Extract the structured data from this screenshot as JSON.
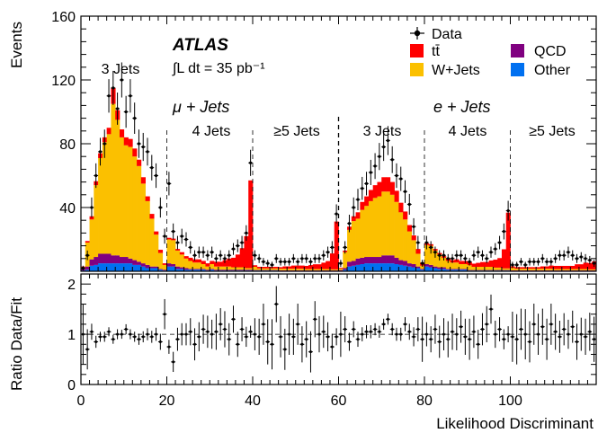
{
  "chart_data": {
    "type": "stacked-histogram-with-ratio",
    "upper": {
      "ylabel": "Events",
      "ylim": [
        0,
        160
      ],
      "yticks": [
        "40",
        "80",
        "120",
        "160"
      ],
      "experiment": "ATLAS",
      "lumi_text": "∫L dt = 35 pb⁻¹",
      "region_labels": [
        "μ + Jets",
        "e + Jets"
      ],
      "jet_bins": [
        "3 Jets",
        "4 Jets",
        "≥5 Jets",
        "3 Jets",
        "4 Jets",
        "≥5 Jets"
      ],
      "legend": [
        {
          "name": "Data",
          "marker": "point"
        },
        {
          "name": "tt̄",
          "color": "#ff0000"
        },
        {
          "name": "QCD",
          "color": "#800080"
        },
        {
          "name": "W+Jets",
          "color": "#fbc000"
        },
        {
          "name": "Other",
          "color": "#0070f0"
        }
      ],
      "legend_position": "top-right"
    },
    "lower": {
      "ylabel": "Ratio Data/Fit",
      "ylim": [
        0,
        2.2
      ],
      "yticks": [
        "0",
        "1",
        "2"
      ],
      "reference_line": 1
    },
    "x": {
      "label": "Likelihood Discriminant",
      "lim": [
        0,
        120
      ],
      "ticks": [
        "0",
        "20",
        "40",
        "60",
        "80",
        "100"
      ],
      "bin_width": 1,
      "segment_boundaries": [
        20,
        40,
        60,
        80,
        100
      ]
    },
    "series": [
      {
        "name": "Other",
        "color": "#0070f0",
        "values": [
          0.5,
          1,
          3.5,
          4,
          5,
          5,
          5,
          5,
          5,
          5,
          5,
          5,
          4,
          4,
          3,
          2,
          2,
          2,
          1,
          0.5,
          3,
          3,
          1.5,
          1.5,
          1,
          1,
          1,
          1,
          1,
          0.5,
          1,
          0.5,
          0.5,
          0.5,
          0.5,
          0.5,
          0.5,
          0.5,
          0.5,
          0.5,
          0.5,
          0.5,
          0.5,
          0.5,
          0.5,
          0.5,
          0.3,
          0.3,
          0.3,
          0.3,
          0.3,
          0.3,
          0.3,
          0.3,
          0.3,
          0.3,
          0.3,
          0.3,
          0.3,
          0.3,
          0.3,
          1,
          3,
          3.5,
          4,
          4.5,
          5,
          5,
          5,
          5,
          5,
          5,
          5,
          4.5,
          4,
          3.5,
          3,
          2.5,
          2,
          1,
          3,
          2.5,
          2,
          1.5,
          1.5,
          1,
          1,
          1,
          1,
          1,
          0.5,
          0.5,
          0.5,
          0.5,
          0.5,
          0.5,
          0.5,
          0.5,
          0.5,
          0.5,
          0.3,
          0.3,
          0.3,
          0.3,
          0.3,
          0.3,
          0.3,
          0.3,
          0.3,
          0.3,
          0.3,
          0.3,
          0.3,
          0.3,
          0.3,
          0.3,
          0.3,
          0.3,
          0.3,
          0.3
        ]
      },
      {
        "name": "QCD",
        "color": "#800080",
        "values": [
          1,
          2,
          4,
          5,
          6,
          6,
          6,
          5,
          5,
          4,
          4,
          3,
          3,
          2,
          2,
          2,
          1,
          1,
          0.5,
          0.5,
          2,
          1.5,
          1.5,
          1,
          1,
          0.5,
          0.5,
          0.5,
          0.5,
          0.5,
          0.5,
          0.5,
          0.5,
          0.5,
          0.5,
          0.5,
          0.5,
          0.5,
          0.5,
          0.5,
          0.3,
          0.3,
          0.3,
          0.3,
          0.3,
          0.3,
          0.3,
          0.3,
          0.3,
          0.3,
          0.3,
          0.3,
          0.3,
          0.3,
          0.3,
          0.3,
          0.3,
          0.3,
          0.3,
          0.3,
          0.5,
          1,
          3,
          3,
          4,
          4,
          4,
          4,
          4,
          4,
          5,
          5,
          5,
          4,
          3,
          3,
          2,
          2,
          1,
          0.5,
          1.5,
          1.5,
          1,
          1,
          1,
          0.5,
          0.5,
          0.5,
          0.5,
          0.5,
          0.3,
          0.3,
          0.3,
          0.3,
          0.3,
          0.3,
          0.3,
          0.3,
          0.3,
          0.3,
          0.3,
          0.3,
          0.3,
          0.3,
          0.3,
          0.3,
          0.3,
          0.3,
          0.3,
          0.3,
          0.3,
          0.3,
          0.3,
          0.3,
          0.3,
          0.3,
          0.3,
          0.3,
          0.3,
          0.3
        ]
      },
      {
        "name": "W+Jets",
        "color": "#fbc000",
        "values": [
          1,
          15,
          25,
          45,
          60,
          70,
          75,
          95,
          85,
          75,
          70,
          70,
          65,
          60,
          50,
          40,
          30,
          20,
          10,
          3,
          15,
          15,
          10,
          8,
          6,
          5,
          4,
          4,
          3,
          2,
          3,
          2,
          2,
          2,
          2,
          1.5,
          1.5,
          1.5,
          1,
          1,
          2,
          1,
          1,
          1,
          1,
          1,
          1,
          1,
          1,
          1,
          1,
          1,
          0.8,
          0.8,
          0.8,
          0.8,
          0.8,
          0.8,
          0.6,
          0.6,
          1,
          10,
          20,
          25,
          25,
          30,
          32,
          35,
          37,
          38,
          40,
          40,
          38,
          35,
          30,
          26,
          20,
          15,
          8,
          2,
          12,
          12,
          10,
          8,
          6,
          5,
          4,
          4,
          3,
          3,
          3,
          2,
          2,
          2,
          2,
          2,
          1.5,
          1.5,
          1,
          1,
          1.5,
          1,
          1,
          1,
          1,
          1,
          1,
          1,
          1,
          1,
          0.8,
          0.8,
          0.8,
          0.8,
          0.8,
          0.8,
          0.8,
          0.8,
          0.6,
          0.6
        ]
      },
      {
        "name": "tt̄",
        "color": "#ff0000",
        "values": [
          0.5,
          1,
          2,
          2.5,
          3,
          3,
          4,
          10,
          6,
          5,
          5,
          5,
          5,
          4,
          4,
          3,
          3,
          2,
          2,
          1,
          1,
          1,
          1,
          1.5,
          1.5,
          2,
          2,
          2,
          2,
          2,
          2,
          3,
          3,
          4,
          5,
          6,
          8,
          12,
          20,
          55,
          1,
          1,
          1,
          1,
          1,
          1,
          1,
          1.5,
          1.5,
          2,
          2,
          2,
          2,
          2.5,
          3,
          3,
          4,
          5,
          10,
          30,
          0.5,
          1,
          2,
          3,
          4,
          5,
          6,
          7,
          8,
          9,
          9,
          9,
          8,
          7,
          6,
          5,
          4,
          3,
          3,
          2,
          1,
          1,
          1,
          1,
          1,
          1.5,
          1.5,
          2,
          2,
          2,
          2,
          2,
          2.5,
          3,
          3,
          4,
          5,
          6,
          12,
          35,
          1,
          1,
          1,
          1,
          1,
          1,
          1,
          1.5,
          1.5,
          2,
          2,
          2,
          2,
          2,
          2,
          3,
          3,
          4,
          4,
          5
        ]
      }
    ],
    "data": {
      "name": "Data",
      "values": [
        2,
        10,
        40,
        60,
        75,
        80,
        110,
        115,
        102,
        120,
        100,
        110,
        96,
        80,
        78,
        75,
        65,
        60,
        40,
        22,
        55,
        25,
        18,
        22,
        20,
        15,
        10,
        12,
        12,
        10,
        12,
        8,
        10,
        8,
        10,
        14,
        16,
        18,
        24,
        68,
        10,
        8,
        6,
        5,
        4,
        8,
        6,
        6,
        6,
        8,
        6,
        8,
        8,
        6,
        8,
        8,
        10,
        12,
        15,
        36,
        5,
        15,
        30,
        40,
        45,
        52,
        55,
        62,
        66,
        72,
        78,
        82,
        70,
        60,
        58,
        50,
        42,
        28,
        18,
        5,
        18,
        15,
        12,
        10,
        10,
        8,
        8,
        10,
        10,
        8,
        6,
        10,
        12,
        10,
        8,
        12,
        14,
        18,
        25,
        38,
        4,
        4,
        6,
        4,
        6,
        6,
        6,
        8,
        6,
        6,
        8,
        10,
        10,
        12,
        10,
        8,
        9,
        8,
        7,
        5
      ],
      "errors": [
        1.5,
        3,
        6.3,
        7.7,
        8.7,
        8.9,
        10.5,
        10.7,
        10.1,
        11,
        10,
        10.5,
        9.8,
        8.9,
        8.8,
        8.7,
        8,
        7.7,
        6.3,
        4.7,
        7.4,
        5,
        4.2,
        4.7,
        4.5,
        3.9,
        3.2,
        3.5,
        3.5,
        3.2,
        3.5,
        2.8,
        3.2,
        2.8,
        3.2,
        3.7,
        4,
        4.2,
        4.9,
        8.2,
        3.2,
        2.8,
        2.4,
        2.2,
        2,
        2.8,
        2.4,
        2.4,
        2.4,
        2.8,
        2.4,
        2.8,
        2.8,
        2.4,
        2.8,
        2.8,
        3.2,
        3.5,
        3.9,
        6,
        2.2,
        3.9,
        5.5,
        6.3,
        6.7,
        7.2,
        7.4,
        7.9,
        8.1,
        8.5,
        8.8,
        9.1,
        8.4,
        7.7,
        7.6,
        7.1,
        6.5,
        5.3,
        4.2,
        2.2,
        4.2,
        3.9,
        3.5,
        3.2,
        3.2,
        2.8,
        2.8,
        3.2,
        3.2,
        2.8,
        2.4,
        3.2,
        3.5,
        3.2,
        2.8,
        3.5,
        3.7,
        4.2,
        5,
        6.2,
        2,
        2,
        2.4,
        2,
        2.4,
        2.4,
        2.4,
        2.8,
        2.4,
        2.4,
        2.8,
        3.2,
        3.2,
        3.5,
        3.2,
        2.8,
        3,
        2.8,
        2.6,
        2.2
      ]
    },
    "ratio": {
      "values": [
        1.0,
        0.7,
        1.05,
        0.85,
        0.95,
        0.95,
        1.05,
        0.9,
        1.0,
        1.0,
        1.1,
        1.0,
        0.95,
        0.9,
        0.95,
        1.0,
        0.95,
        1.0,
        0.85,
        1.4,
        0.75,
        0.45,
        0.9,
        1.0,
        1.0,
        1.05,
        0.8,
        0.95,
        1.1,
        1.05,
        1.0,
        1.05,
        1.2,
        1.1,
        0.9,
        1.3,
        0.8,
        1.1,
        0.95,
        1.05,
        1.0,
        0.95,
        1.2,
        0.85,
        0.8,
        1.6,
        0.95,
        0.7,
        1.0,
        0.95,
        1.2,
        0.8,
        0.9,
        0.65,
        1.3,
        1.0,
        1.05,
        0.95,
        0.75,
        0.95,
        1.0,
        1.1,
        0.85,
        1.1,
        0.9,
        1.0,
        1.05,
        1.05,
        1.1,
        1.05,
        1.2,
        1.3,
        1.1,
        1.0,
        1.0,
        1.2,
        1.05,
        0.95,
        1.1,
        0.9,
        1.0,
        0.9,
        1.1,
        0.85,
        1.0,
        0.9,
        1.05,
        1.0,
        1.15,
        0.95,
        0.9,
        1.05,
        0.8,
        1.1,
        1.2,
        1.5,
        1.0,
        1.1,
        0.9,
        1.0,
        0.95,
        0.9,
        1.1,
        1.0,
        0.85,
        1.2,
        1.0,
        1.15,
        0.9,
        1.2,
        1.05,
        0.95,
        1.1,
        1.0,
        1.15,
        0.85,
        1.0,
        0.95,
        1.05,
        0.9
      ],
      "errors": [
        0.6,
        0.4,
        0.16,
        0.12,
        0.1,
        0.1,
        0.09,
        0.09,
        0.1,
        0.09,
        0.1,
        0.1,
        0.1,
        0.11,
        0.11,
        0.12,
        0.12,
        0.13,
        0.16,
        0.3,
        0.14,
        0.2,
        0.23,
        0.22,
        0.22,
        0.27,
        0.32,
        0.29,
        0.29,
        0.32,
        0.29,
        0.36,
        0.32,
        0.36,
        0.32,
        0.27,
        0.25,
        0.24,
        0.2,
        0.12,
        0.32,
        0.36,
        0.41,
        0.45,
        0.5,
        0.36,
        0.41,
        0.41,
        0.41,
        0.36,
        0.41,
        0.36,
        0.36,
        0.41,
        0.36,
        0.36,
        0.32,
        0.29,
        0.26,
        0.17,
        0.45,
        0.26,
        0.18,
        0.16,
        0.15,
        0.14,
        0.13,
        0.13,
        0.12,
        0.12,
        0.11,
        0.11,
        0.12,
        0.13,
        0.13,
        0.14,
        0.16,
        0.19,
        0.24,
        0.45,
        0.24,
        0.26,
        0.29,
        0.32,
        0.32,
        0.36,
        0.36,
        0.32,
        0.32,
        0.36,
        0.41,
        0.32,
        0.29,
        0.32,
        0.36,
        0.29,
        0.27,
        0.24,
        0.2,
        0.16,
        0.5,
        0.5,
        0.41,
        0.5,
        0.41,
        0.41,
        0.41,
        0.36,
        0.41,
        0.41,
        0.36,
        0.32,
        0.32,
        0.29,
        0.32,
        0.36,
        0.33,
        0.36,
        0.38,
        0.45
      ]
    }
  }
}
